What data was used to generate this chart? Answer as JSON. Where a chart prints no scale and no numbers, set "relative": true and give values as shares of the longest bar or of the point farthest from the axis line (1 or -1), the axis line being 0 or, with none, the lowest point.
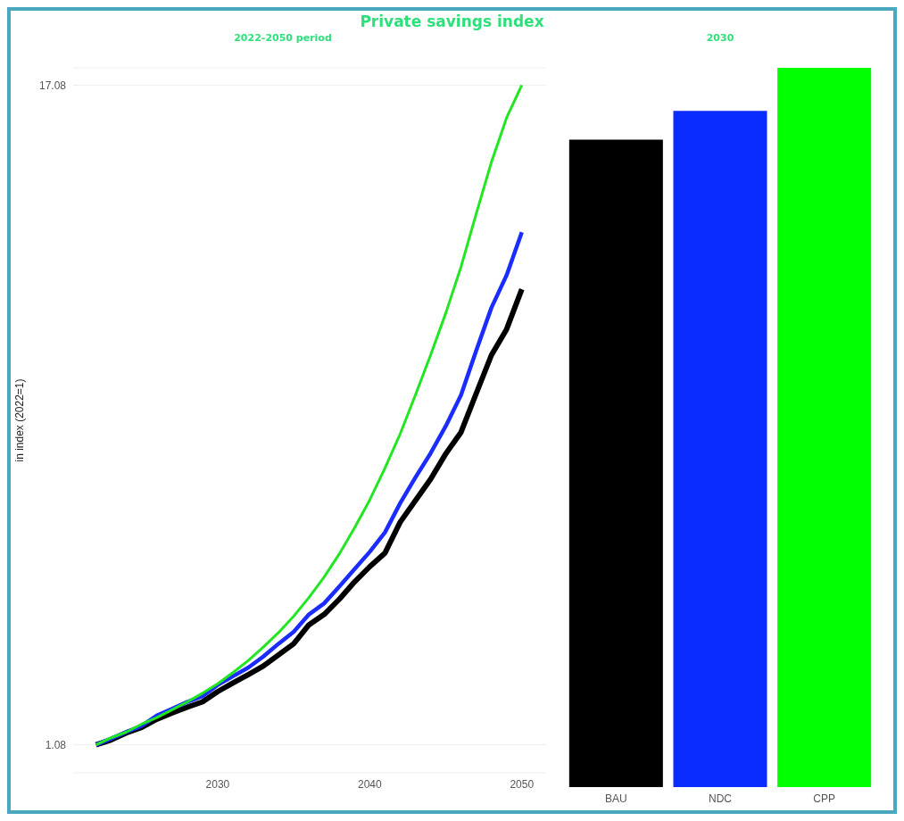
{
  "chart_data": [
    {
      "type": "line",
      "title": "Private savings index",
      "subtitle": "2022-2050 period",
      "ylabel": "in index (2022=1)",
      "x": [
        2022,
        2023,
        2024,
        2025,
        2026,
        2027,
        2028,
        2029,
        2030,
        2031,
        2032,
        2033,
        2034,
        2035,
        2036,
        2037,
        2038,
        2039,
        2040,
        2041,
        2042,
        2043,
        2044,
        2045,
        2046,
        2047,
        2048,
        2049,
        2050
      ],
      "series": [
        {
          "color": "#000000",
          "values": [
            1.08,
            1.2,
            1.37,
            1.5,
            1.7,
            1.85,
            1.99,
            2.12,
            2.37,
            2.58,
            2.78,
            2.99,
            3.26,
            3.53,
            3.99,
            4.24,
            4.61,
            5.03,
            5.4,
            5.73,
            6.48,
            7.0,
            7.52,
            8.14,
            8.66,
            9.6,
            10.53,
            11.16,
            12.13
          ]
        },
        {
          "color": "#1a2cff",
          "values": [
            1.08,
            1.23,
            1.39,
            1.54,
            1.79,
            1.95,
            2.12,
            2.26,
            2.53,
            2.74,
            2.95,
            3.22,
            3.53,
            3.82,
            4.24,
            4.51,
            4.92,
            5.34,
            5.76,
            6.23,
            6.94,
            7.56,
            8.15,
            8.81,
            9.56,
            10.64,
            11.68,
            12.47,
            13.51
          ]
        },
        {
          "color": "#22e622",
          "values": [
            1.08,
            1.25,
            1.39,
            1.58,
            1.74,
            1.93,
            2.12,
            2.33,
            2.56,
            2.83,
            3.12,
            3.45,
            3.8,
            4.2,
            4.65,
            5.15,
            5.71,
            6.34,
            7.02,
            7.79,
            8.62,
            9.56,
            10.53,
            11.55,
            12.67,
            13.96,
            15.21,
            16.29,
            17.08
          ]
        }
      ],
      "xlim": [
        2020.5,
        2051.6
      ],
      "xticks": [
        2030,
        2040,
        2050
      ],
      "ylim": [
        0.4,
        17.5
      ],
      "yticks": [
        1.08,
        17.08
      ],
      "grid": "y",
      "marker": "none",
      "line_style": "solid"
    },
    {
      "type": "bar",
      "title": "2030",
      "categories": [
        "BAU",
        "NDC",
        "CPP"
      ],
      "values": [
        0.9,
        0.94,
        1
      ],
      "colors": [
        "#000000",
        "#0a2cff",
        "#00ff00"
      ],
      "relative": true
    }
  ]
}
